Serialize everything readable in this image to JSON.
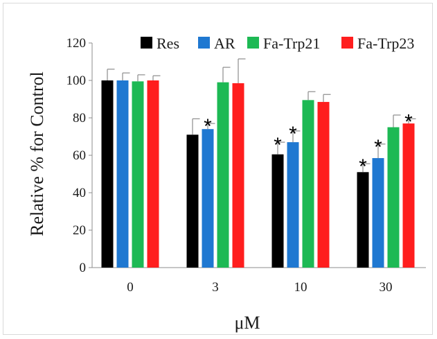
{
  "chart_data": {
    "type": "bar",
    "xlabel": "μM",
    "ylabel": "Relative % for Control",
    "categories": [
      "0",
      "3",
      "10",
      "30"
    ],
    "ylim": [
      0,
      120
    ],
    "yticks": [
      "0",
      "20",
      "40",
      "60",
      "80",
      "100",
      "120"
    ],
    "grid": false,
    "legend_position": "top",
    "series": [
      {
        "name": "Res",
        "color": "#000000",
        "values": [
          100,
          71,
          60.5,
          51
        ],
        "errors": [
          6,
          8.5,
          6.5,
          4.5
        ],
        "significant": [
          false,
          false,
          true,
          true
        ]
      },
      {
        "name": "AR",
        "color": "#1f78d1",
        "values": [
          100,
          74,
          67,
          58.5
        ],
        "errors": [
          4,
          3,
          6,
          7.5
        ],
        "significant": [
          false,
          true,
          true,
          true
        ]
      },
      {
        "name": "Fa-Trp21",
        "color": "#1db954",
        "values": [
          99.5,
          99,
          89.5,
          75
        ],
        "errors": [
          3.5,
          8,
          4.5,
          6.5
        ],
        "significant": [
          false,
          false,
          false,
          false
        ]
      },
      {
        "name": "Fa-Trp23",
        "color": "#ff1e1e",
        "values": [
          100,
          98.5,
          88.5,
          77
        ],
        "errors": [
          2.5,
          13,
          4,
          2.5
        ],
        "significant": [
          false,
          false,
          false,
          true
        ]
      }
    ],
    "significance_marker": "*"
  }
}
